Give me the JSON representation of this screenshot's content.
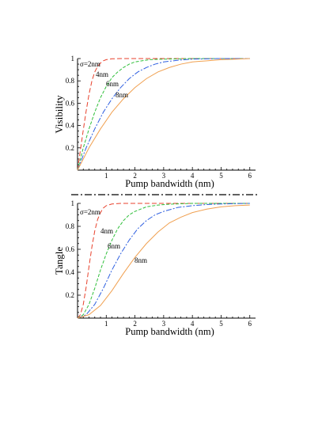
{
  "chart_data": [
    {
      "type": "line",
      "xlabel": "Pump bandwidth (nm)",
      "ylabel": "Visibility",
      "xlim": [
        0,
        6.2
      ],
      "ylim": [
        0,
        1
      ],
      "x_ticks": [
        "1",
        "2",
        "3",
        "4",
        "5",
        "6"
      ],
      "y_ticks": [
        "0.2",
        "0.4",
        "0.6",
        "0.8",
        "1"
      ],
      "series": [
        {
          "name": "σ=2nm",
          "color": "#e8412c",
          "dash": "6,3",
          "x": [
            0,
            0.1,
            0.2,
            0.3,
            0.4,
            0.5,
            0.6,
            0.7,
            0.8,
            0.9,
            1.0,
            1.2,
            1.5,
            2.0,
            3.0,
            4.0,
            5.0,
            6.0
          ],
          "y": [
            0,
            0.18,
            0.36,
            0.53,
            0.68,
            0.8,
            0.88,
            0.93,
            0.96,
            0.98,
            0.99,
            0.998,
            1.0,
            1.0,
            1.0,
            1.0,
            1.0,
            1.0
          ]
        },
        {
          "name": "4nm",
          "color": "#2fbf3a",
          "dash": "4,2",
          "x": [
            0,
            0.2,
            0.4,
            0.6,
            0.8,
            1.0,
            1.2,
            1.4,
            1.6,
            1.8,
            2.0,
            2.5,
            3.0,
            4.0,
            5.0,
            6.0
          ],
          "y": [
            0,
            0.2,
            0.37,
            0.52,
            0.65,
            0.75,
            0.83,
            0.88,
            0.92,
            0.95,
            0.97,
            0.99,
            0.995,
            1.0,
            1.0,
            1.0
          ]
        },
        {
          "name": "6nm",
          "color": "#2e5fe0",
          "dash": "7,2,2,2",
          "x": [
            0,
            0.3,
            0.6,
            0.9,
            1.2,
            1.5,
            1.8,
            2.1,
            2.4,
            2.7,
            3.0,
            3.5,
            4.0,
            5.0,
            6.0
          ],
          "y": [
            0,
            0.2,
            0.37,
            0.52,
            0.64,
            0.74,
            0.82,
            0.88,
            0.92,
            0.95,
            0.97,
            0.985,
            0.995,
            1.0,
            1.0
          ]
        },
        {
          "name": "8nm",
          "color": "#f0a050",
          "dash": "",
          "x": [
            0,
            0.4,
            0.8,
            1.2,
            1.6,
            2.0,
            2.4,
            2.8,
            3.2,
            3.6,
            4.0,
            4.5,
            5.0,
            5.5,
            6.0
          ],
          "y": [
            0,
            0.2,
            0.37,
            0.52,
            0.64,
            0.74,
            0.82,
            0.88,
            0.92,
            0.95,
            0.97,
            0.98,
            0.99,
            0.995,
            1.0
          ]
        }
      ]
    },
    {
      "type": "line",
      "xlabel": "Pump bandwidth (nm)",
      "ylabel": "Tangle",
      "xlim": [
        0,
        6.2
      ],
      "ylim": [
        0,
        1
      ],
      "x_ticks": [
        "1",
        "2",
        "3",
        "4",
        "5",
        "6"
      ],
      "y_ticks": [
        "0.2",
        "0.4",
        "0.6",
        "0.8",
        "1"
      ],
      "series": [
        {
          "name": "σ=2nm",
          "color": "#e8412c",
          "dash": "6,3",
          "x": [
            0,
            0.1,
            0.2,
            0.3,
            0.4,
            0.5,
            0.6,
            0.7,
            0.8,
            0.9,
            1.0,
            1.2,
            1.5,
            2.0,
            3.0,
            4.0,
            5.0,
            6.0
          ],
          "y": [
            0,
            0.03,
            0.12,
            0.27,
            0.45,
            0.62,
            0.76,
            0.86,
            0.92,
            0.96,
            0.98,
            0.995,
            1.0,
            1.0,
            1.0,
            1.0,
            1.0,
            1.0
          ]
        },
        {
          "name": "4nm",
          "color": "#2fbf3a",
          "dash": "4,2",
          "x": [
            0,
            0.2,
            0.4,
            0.6,
            0.8,
            1.0,
            1.2,
            1.4,
            1.6,
            1.8,
            2.0,
            2.4,
            2.8,
            3.2,
            4.0,
            5.0,
            6.0
          ],
          "y": [
            0,
            0.03,
            0.12,
            0.26,
            0.42,
            0.56,
            0.68,
            0.78,
            0.85,
            0.9,
            0.93,
            0.97,
            0.985,
            0.993,
            1.0,
            1.0,
            1.0
          ]
        },
        {
          "name": "6nm",
          "color": "#2e5fe0",
          "dash": "7,2,2,2",
          "x": [
            0,
            0.3,
            0.6,
            0.9,
            1.2,
            1.5,
            1.8,
            2.1,
            2.4,
            2.7,
            3.0,
            3.5,
            4.0,
            4.5,
            5.0,
            6.0
          ],
          "y": [
            0,
            0.03,
            0.12,
            0.26,
            0.42,
            0.56,
            0.68,
            0.78,
            0.85,
            0.9,
            0.93,
            0.965,
            0.98,
            0.99,
            0.995,
            1.0
          ]
        },
        {
          "name": "8nm",
          "color": "#f0a050",
          "dash": "",
          "x": [
            0,
            0.4,
            0.8,
            1.2,
            1.6,
            2.0,
            2.4,
            2.8,
            3.2,
            3.6,
            4.0,
            4.5,
            5.0,
            5.5,
            6.0
          ],
          "y": [
            0,
            0.03,
            0.11,
            0.24,
            0.39,
            0.53,
            0.65,
            0.75,
            0.83,
            0.88,
            0.92,
            0.95,
            0.97,
            0.98,
            0.985
          ]
        }
      ]
    }
  ]
}
